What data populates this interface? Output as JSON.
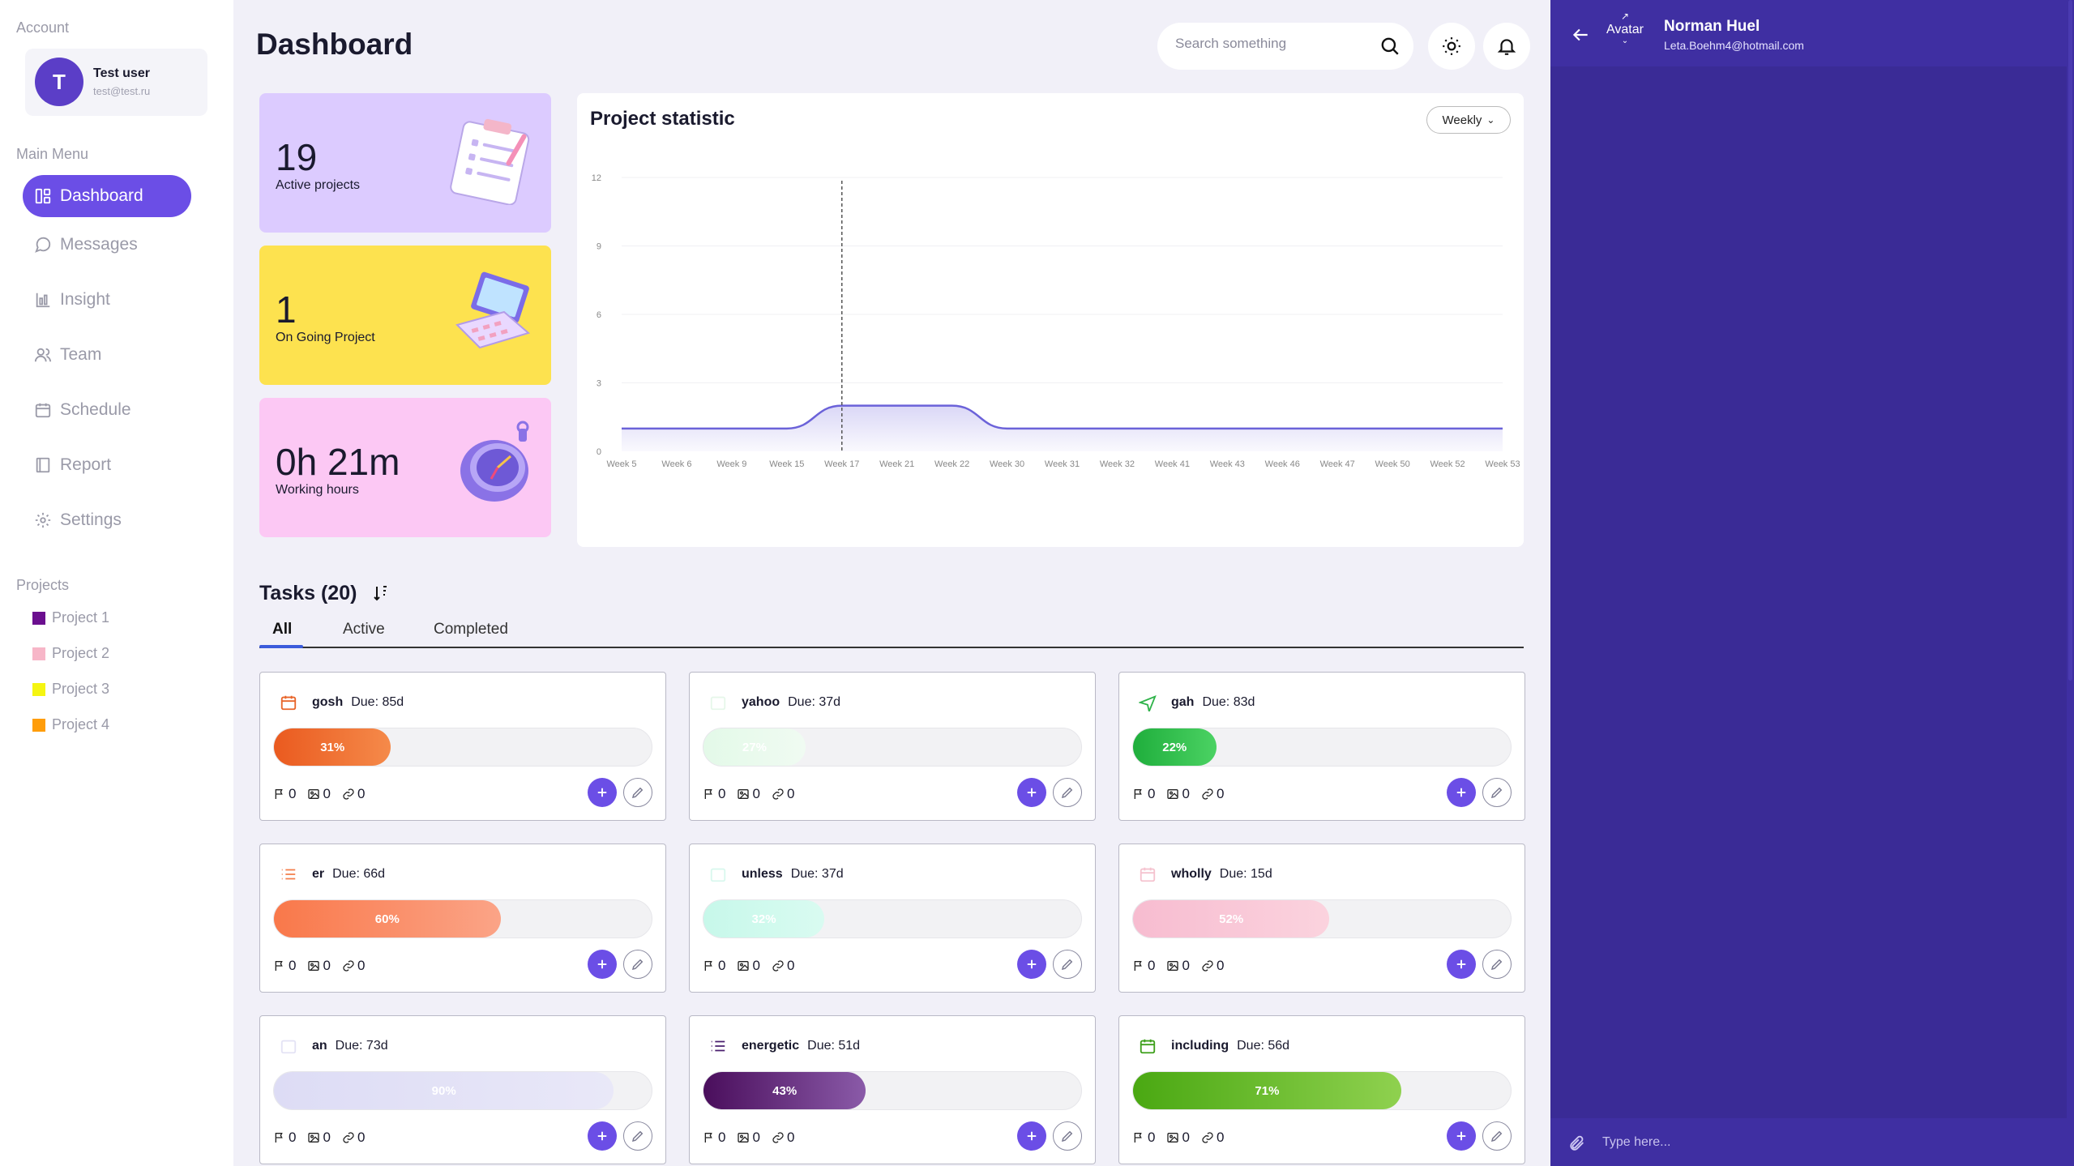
{
  "sidebar": {
    "account_label": "Account",
    "user": {
      "initial": "T",
      "name": "Test user",
      "email": "test@test.ru"
    },
    "main_menu_label": "Main Menu",
    "items": [
      {
        "label": "Dashboard",
        "icon": "dashboard-icon",
        "active": true
      },
      {
        "label": "Messages",
        "icon": "messages-icon"
      },
      {
        "label": "Insight",
        "icon": "insight-icon"
      },
      {
        "label": "Team",
        "icon": "team-icon"
      },
      {
        "label": "Schedule",
        "icon": "calendar-icon"
      },
      {
        "label": "Report",
        "icon": "report-icon"
      },
      {
        "label": "Settings",
        "icon": "gear-icon"
      }
    ],
    "projects_label": "Projects",
    "projects": [
      {
        "label": "Project 1",
        "color": "#6b0f8f"
      },
      {
        "label": "Project 2",
        "color": "#f7b6c8"
      },
      {
        "label": "Project 3",
        "color": "#f5f511"
      },
      {
        "label": "Project 4",
        "color": "#ff9d0a"
      }
    ]
  },
  "header": {
    "title": "Dashboard",
    "search_placeholder": "Search something"
  },
  "stats": [
    {
      "value": "19",
      "label": "Active projects",
      "color": "#dccbff"
    },
    {
      "value": "1",
      "label": "On Going Project",
      "color": "#fde24f"
    },
    {
      "value": "0h 21m",
      "label": "Working hours",
      "color": "#fcc8f4"
    }
  ],
  "chart": {
    "title": "Project statistic",
    "period_label": "Weekly"
  },
  "chart_data": {
    "type": "area",
    "title": "Project statistic",
    "categories": [
      "Week 5",
      "Week 6",
      "Week 9",
      "Week 15",
      "Week 17",
      "Week 21",
      "Week 22",
      "Week 30",
      "Week 31",
      "Week 32",
      "Week 41",
      "Week 43",
      "Week 46",
      "Week 47",
      "Week 50",
      "Week 52",
      "Week 53"
    ],
    "values": [
      1,
      1,
      1,
      1,
      2,
      2,
      2,
      1,
      1,
      1,
      1,
      1,
      1,
      1,
      1,
      1,
      1
    ],
    "y_ticks": [
      "0",
      "3",
      "6",
      "9",
      "12"
    ],
    "ylim": [
      0,
      12
    ],
    "highlight_category": "Week 17",
    "color": "#6b62d9",
    "grid": true
  },
  "tasks": {
    "title": "Tasks (20)",
    "tabs": [
      "All",
      "Active",
      "Completed"
    ],
    "items": [
      {
        "name": "gosh",
        "due": "Due: 85d",
        "progress": 31,
        "label": "31%",
        "icon": "calendar-icon",
        "icon_color": "#e8652a",
        "fill": "linear-gradient(90deg,#ea5a1f,#f58a4a)",
        "comments": "0",
        "images": "0",
        "links": "0"
      },
      {
        "name": "yahoo",
        "due": "Due: 37d",
        "progress": 27,
        "label": "27%",
        "icon": "blank-icon",
        "icon_color": "#e6f7ea",
        "fill": "linear-gradient(90deg,#e3f9e8,#f0fbf2)",
        "comments": "0",
        "images": "0",
        "links": "0"
      },
      {
        "name": "gah",
        "due": "Due: 83d",
        "progress": 22,
        "label": "22%",
        "icon": "airplane-icon",
        "icon_color": "#2fb34a",
        "fill": "linear-gradient(90deg,#1fae3c,#4bd263)",
        "comments": "0",
        "images": "0",
        "links": "0"
      },
      {
        "name": "er",
        "due": "Due: 66d",
        "progress": 60,
        "label": "60%",
        "icon": "list-icon",
        "icon_color": "#f47d4a",
        "fill": "linear-gradient(90deg,#f9784a,#fba487)",
        "comments": "0",
        "images": "0",
        "links": "0"
      },
      {
        "name": "unless",
        "due": "Due: 37d",
        "progress": 32,
        "label": "32%",
        "icon": "blank-icon",
        "icon_color": "#d9f8ee",
        "fill": "linear-gradient(90deg,#c7f8ea,#d9fbf1)",
        "comments": "0",
        "images": "0",
        "links": "0"
      },
      {
        "name": "wholly",
        "due": "Due: 15d",
        "progress": 52,
        "label": "52%",
        "icon": "calendar-icon",
        "icon_color": "#f5c3cf",
        "fill": "linear-gradient(90deg,#f7bcd0,#fbd3de)",
        "comments": "0",
        "images": "0",
        "links": "0"
      },
      {
        "name": "an",
        "due": "Due: 73d",
        "progress": 90,
        "label": "90%",
        "icon": "blank-icon",
        "icon_color": "#e4e3f5",
        "fill": "linear-gradient(90deg,#dddcf5,#e9e8f8)",
        "comments": "0",
        "images": "0",
        "links": "0"
      },
      {
        "name": "energetic",
        "due": "Due: 51d",
        "progress": 43,
        "label": "43%",
        "icon": "list-icon",
        "icon_color": "#4a1e6e",
        "fill": "linear-gradient(90deg,#4a0e5c,#8a5aa8)",
        "comments": "0",
        "images": "0",
        "links": "0"
      },
      {
        "name": "including",
        "due": "Due: 56d",
        "progress": 71,
        "label": "71%",
        "icon": "calendar-icon",
        "icon_color": "#3fa01c",
        "fill": "linear-gradient(90deg,#4aa812,#8fd14f)",
        "comments": "0",
        "images": "0",
        "links": "0"
      }
    ]
  },
  "chat": {
    "avatar_label": "Avatar",
    "name": "Norman Huel",
    "email": "Leta.Boehm4@hotmail.com",
    "input_placeholder": "Type here..."
  },
  "accent_color": "#6b4ee6"
}
